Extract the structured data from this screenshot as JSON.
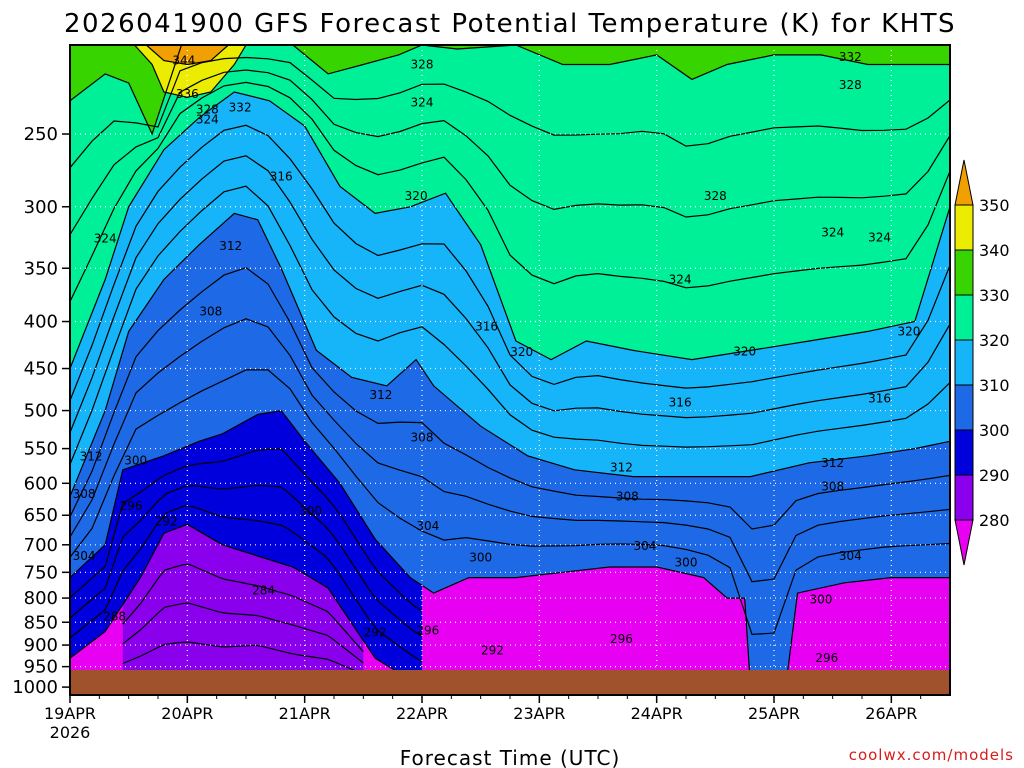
{
  "chart_data": {
    "type": "heatmap",
    "title": "2026041900 GFS Forecast Potential Temperature (K) for KHTS",
    "xlabel": "Forecast Time (UTC)",
    "ylabel": "",
    "credit": "coolwx.com/models",
    "y_scale": "log",
    "y_reversed": true,
    "ylim": [
      1020,
      200
    ],
    "y_ticks": [
      250,
      300,
      350,
      400,
      450,
      500,
      550,
      600,
      650,
      700,
      750,
      800,
      850,
      900,
      950,
      1000
    ],
    "x_ticks": [
      "19APR",
      "20APR",
      "21APR",
      "22APR",
      "23APR",
      "24APR",
      "25APR",
      "26APR"
    ],
    "x_start_extra": "2026",
    "xlim_days": [
      0,
      7.5
    ],
    "grid": true,
    "colorbar": {
      "levels": [
        280,
        290,
        300,
        310,
        320,
        330,
        340,
        350
      ],
      "colors": [
        "#e800f2",
        "#8a00ec",
        "#0000dc",
        "#1e6ae6",
        "#16b4f8",
        "#00f098",
        "#38d400",
        "#ecec00",
        "#f0a000"
      ]
    },
    "series": [
      {
        "name": "280",
        "values": [
          [
            0.45,
            990
          ],
          [
            0.9,
            985
          ],
          [
            1.3,
            985
          ],
          [
            1.6,
            970
          ],
          [
            1.9,
            990
          ],
          [
            2.2,
            990
          ],
          [
            2.5,
            995
          ]
        ]
      },
      {
        "name": "290",
        "values": [
          [
            0,
            930
          ],
          [
            0.3,
            870
          ],
          [
            0.6,
            760
          ],
          [
            0.8,
            680
          ],
          [
            1.0,
            665
          ],
          [
            1.3,
            700
          ],
          [
            1.6,
            720
          ],
          [
            1.9,
            740
          ],
          [
            2.2,
            780
          ],
          [
            2.6,
            930
          ],
          [
            3.0,
            1000
          ]
        ]
      },
      {
        "name": "300",
        "values": [
          [
            0,
            760
          ],
          [
            0.3,
            700
          ],
          [
            0.45,
            580
          ],
          [
            0.8,
            560
          ],
          [
            1.1,
            540
          ],
          [
            1.3,
            530
          ],
          [
            1.6,
            505
          ],
          [
            1.8,
            500
          ],
          [
            2.0,
            540
          ],
          [
            2.3,
            600
          ],
          [
            2.6,
            690
          ],
          [
            2.9,
            760
          ],
          [
            3.1,
            790
          ],
          [
            3.4,
            760
          ],
          [
            3.8,
            760
          ],
          [
            4.2,
            750
          ],
          [
            4.6,
            740
          ],
          [
            5.0,
            740
          ],
          [
            5.4,
            760
          ],
          [
            5.6,
            800
          ],
          [
            5.75,
            800
          ],
          [
            5.8,
            1000
          ],
          [
            6.1,
            1000
          ],
          [
            6.2,
            790
          ],
          [
            6.6,
            770
          ],
          [
            7.0,
            760
          ],
          [
            7.5,
            760
          ]
        ]
      },
      {
        "name": "310",
        "values": [
          [
            0,
            620
          ],
          [
            0.3,
            500
          ],
          [
            0.5,
            410
          ],
          [
            0.8,
            360
          ],
          [
            1.1,
            330
          ],
          [
            1.4,
            305
          ],
          [
            1.6,
            310
          ],
          [
            1.8,
            350
          ],
          [
            2.1,
            430
          ],
          [
            2.4,
            460
          ],
          [
            2.7,
            470
          ],
          [
            2.95,
            440
          ],
          [
            3.1,
            470
          ],
          [
            3.5,
            520
          ],
          [
            3.9,
            560
          ],
          [
            4.3,
            580
          ],
          [
            4.8,
            590
          ],
          [
            5.3,
            590
          ],
          [
            5.8,
            590
          ],
          [
            6.3,
            570
          ],
          [
            6.8,
            560
          ],
          [
            7.2,
            550
          ],
          [
            7.5,
            540
          ]
        ]
      },
      {
        "name": "320",
        "values": [
          [
            0,
            450
          ],
          [
            0.3,
            360
          ],
          [
            0.5,
            300
          ],
          [
            0.8,
            260
          ],
          [
            1.1,
            240
          ],
          [
            1.4,
            225
          ],
          [
            1.7,
            230
          ],
          [
            2.0,
            245
          ],
          [
            2.3,
            285
          ],
          [
            2.6,
            305
          ],
          [
            2.9,
            300
          ],
          [
            3.2,
            290
          ],
          [
            3.5,
            330
          ],
          [
            3.8,
            420
          ],
          [
            4.1,
            440
          ],
          [
            4.4,
            420
          ],
          [
            4.8,
            430
          ],
          [
            5.3,
            440
          ],
          [
            5.8,
            430
          ],
          [
            6.3,
            420
          ],
          [
            6.8,
            410
          ],
          [
            7.2,
            400
          ],
          [
            7.5,
            300
          ]
        ]
      },
      {
        "name": "330",
        "values": [
          [
            0,
            230
          ],
          [
            0.3,
            215
          ],
          [
            0.5,
            220
          ],
          [
            0.7,
            250
          ],
          [
            0.95,
            200
          ],
          [
            1.6,
            200
          ],
          [
            1.9,
            200
          ],
          [
            2.2,
            215
          ],
          [
            2.5,
            210
          ],
          [
            2.8,
            205
          ],
          [
            3.0,
            200
          ],
          [
            3.3,
            202
          ],
          [
            3.8,
            200
          ],
          [
            4.2,
            210
          ],
          [
            4.6,
            210
          ],
          [
            5.0,
            205
          ],
          [
            5.3,
            218
          ],
          [
            5.6,
            210
          ],
          [
            6.0,
            205
          ],
          [
            6.4,
            205
          ],
          [
            6.8,
            210
          ],
          [
            7.2,
            210
          ],
          [
            7.5,
            210
          ]
        ]
      },
      {
        "name": "340",
        "values": [
          [
            0.55,
            200
          ],
          [
            0.7,
            210
          ],
          [
            0.8,
            225
          ],
          [
            1.0,
            228
          ],
          [
            1.2,
            225
          ],
          [
            1.4,
            210
          ],
          [
            1.5,
            200
          ]
        ]
      },
      {
        "name": "350",
        "values": [
          [
            0.65,
            200
          ],
          [
            0.8,
            208
          ],
          [
            1.0,
            210
          ],
          [
            1.2,
            208
          ],
          [
            1.35,
            200
          ]
        ]
      }
    ],
    "contour_labels": [
      {
        "text": "344",
        "x": 0.97,
        "y": 208
      },
      {
        "text": "336",
        "x": 1.0,
        "y": 226
      },
      {
        "text": "328",
        "x": 1.17,
        "y": 235
      },
      {
        "text": "332",
        "x": 1.45,
        "y": 234
      },
      {
        "text": "324",
        "x": 1.17,
        "y": 241
      },
      {
        "text": "328",
        "x": 3.0,
        "y": 210
      },
      {
        "text": "324",
        "x": 3.0,
        "y": 231
      },
      {
        "text": "332",
        "x": 6.65,
        "y": 206
      },
      {
        "text": "328",
        "x": 6.65,
        "y": 221
      },
      {
        "text": "316",
        "x": 1.8,
        "y": 278
      },
      {
        "text": "320",
        "x": 2.95,
        "y": 292
      },
      {
        "text": "328",
        "x": 5.5,
        "y": 292
      },
      {
        "text": "324",
        "x": 6.5,
        "y": 320
      },
      {
        "text": "324",
        "x": 6.9,
        "y": 324
      },
      {
        "text": "324",
        "x": 0.3,
        "y": 325
      },
      {
        "text": "312",
        "x": 1.37,
        "y": 331
      },
      {
        "text": "324",
        "x": 5.2,
        "y": 360
      },
      {
        "text": "308",
        "x": 1.2,
        "y": 390
      },
      {
        "text": "316",
        "x": 3.55,
        "y": 405
      },
      {
        "text": "320",
        "x": 3.85,
        "y": 432
      },
      {
        "text": "320",
        "x": 5.75,
        "y": 431
      },
      {
        "text": "320",
        "x": 7.15,
        "y": 410
      },
      {
        "text": "312",
        "x": 2.65,
        "y": 481
      },
      {
        "text": "316",
        "x": 5.2,
        "y": 490
      },
      {
        "text": "316",
        "x": 6.9,
        "y": 485
      },
      {
        "text": "308",
        "x": 3.0,
        "y": 535
      },
      {
        "text": "312",
        "x": 0.18,
        "y": 561
      },
      {
        "text": "300",
        "x": 0.56,
        "y": 567
      },
      {
        "text": "312",
        "x": 4.7,
        "y": 577
      },
      {
        "text": "312",
        "x": 6.5,
        "y": 570
      },
      {
        "text": "308",
        "x": 0.12,
        "y": 616
      },
      {
        "text": "296",
        "x": 0.52,
        "y": 635
      },
      {
        "text": "308",
        "x": 4.75,
        "y": 620
      },
      {
        "text": "308",
        "x": 6.5,
        "y": 605
      },
      {
        "text": "292",
        "x": 0.82,
        "y": 660
      },
      {
        "text": "300",
        "x": 2.05,
        "y": 643
      },
      {
        "text": "304",
        "x": 3.05,
        "y": 668
      },
      {
        "text": "304",
        "x": 4.9,
        "y": 702
      },
      {
        "text": "304",
        "x": 0.12,
        "y": 720
      },
      {
        "text": "300",
        "x": 3.5,
        "y": 723
      },
      {
        "text": "300",
        "x": 5.25,
        "y": 732
      },
      {
        "text": "304",
        "x": 6.65,
        "y": 720
      },
      {
        "text": "284",
        "x": 1.65,
        "y": 785
      },
      {
        "text": "300",
        "x": 6.4,
        "y": 803
      },
      {
        "text": "288",
        "x": 0.38,
        "y": 838
      },
      {
        "text": "292",
        "x": 2.6,
        "y": 872
      },
      {
        "text": "296",
        "x": 3.05,
        "y": 868
      },
      {
        "text": "296",
        "x": 4.7,
        "y": 886
      },
      {
        "text": "292",
        "x": 3.6,
        "y": 912
      },
      {
        "text": "296",
        "x": 6.45,
        "y": 930
      }
    ]
  }
}
